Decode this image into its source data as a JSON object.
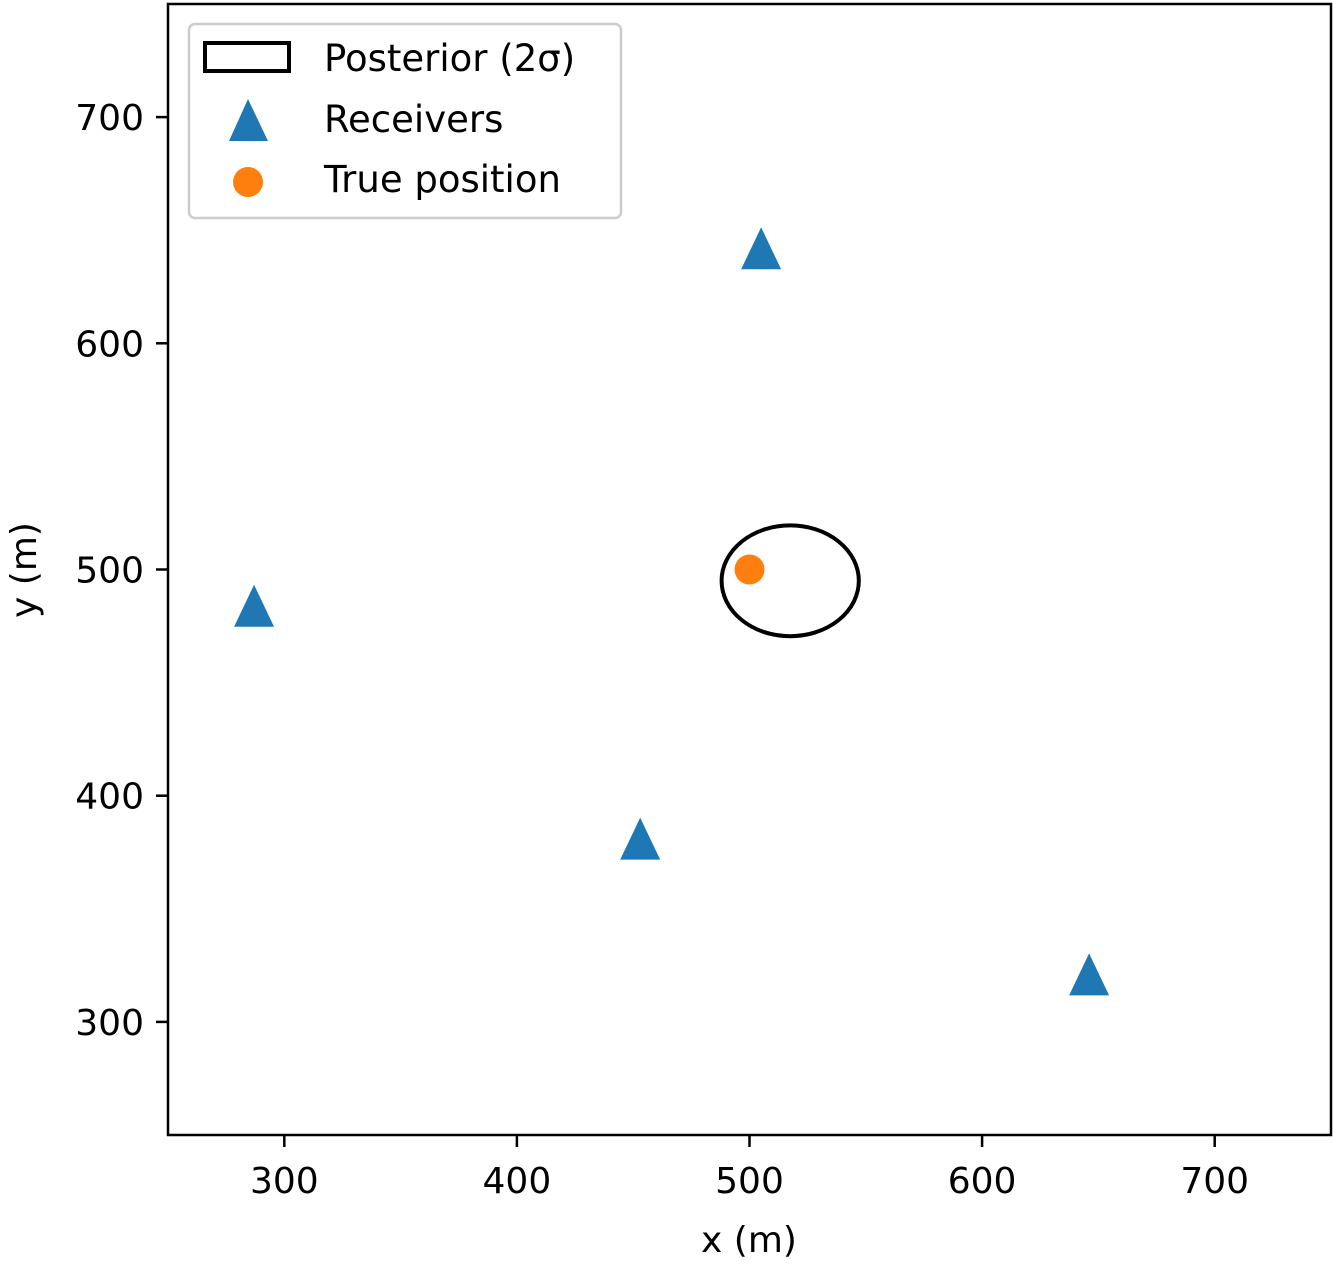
{
  "chart_data": {
    "type": "scatter",
    "xlabel": "x (m)",
    "ylabel": "y (m)",
    "xlim": [
      250,
      750
    ],
    "ylim": [
      250,
      750
    ],
    "xticks": [
      300,
      400,
      500,
      600,
      700
    ],
    "yticks": [
      300,
      400,
      500,
      600,
      700
    ],
    "grid": false,
    "legend_position": "top-left",
    "legend": [
      {
        "label": "Posterior (2σ)",
        "marker": "ellipse-outline",
        "color": "#000000"
      },
      {
        "label": "Receivers",
        "marker": "triangle",
        "color": "#1f77b4"
      },
      {
        "label": "True position",
        "marker": "circle",
        "color": "#ff7f0e"
      }
    ],
    "series": [
      {
        "name": "Receivers",
        "marker": "triangle",
        "color": "#1f77b4",
        "points": [
          {
            "x": 505,
            "y": 642
          },
          {
            "x": 287,
            "y": 484
          },
          {
            "x": 453,
            "y": 381
          },
          {
            "x": 646,
            "y": 321
          }
        ]
      },
      {
        "name": "True position",
        "marker": "circle",
        "color": "#ff7f0e",
        "points": [
          {
            "x": 500,
            "y": 500
          }
        ]
      }
    ],
    "ellipse": {
      "name": "Posterior (2σ)",
      "center": {
        "x": 517.5,
        "y": 495
      },
      "semi_axis_x": 29.5,
      "semi_axis_y": 24.5,
      "color": "#000000"
    }
  }
}
